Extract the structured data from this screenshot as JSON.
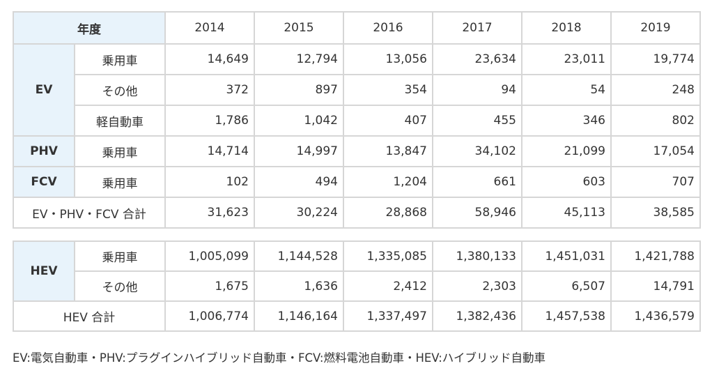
{
  "header": {
    "year_label": "年度",
    "years": [
      "2014",
      "2015",
      "2016",
      "2017",
      "2018",
      "2019"
    ]
  },
  "table1": {
    "ev": {
      "label": "EV",
      "rows": [
        {
          "sub": "乗用車",
          "values": [
            "14,649",
            "12,794",
            "13,056",
            "23,634",
            "23,011",
            "19,774"
          ]
        },
        {
          "sub": "その他",
          "values": [
            "372",
            "897",
            "354",
            "94",
            "54",
            "248"
          ]
        },
        {
          "sub": "軽自動車",
          "values": [
            "1,786",
            "1,042",
            "407",
            "455",
            "346",
            "802"
          ]
        }
      ]
    },
    "phv": {
      "label": "PHV",
      "sub": "乗用車",
      "values": [
        "14,714",
        "14,997",
        "13,847",
        "34,102",
        "21,099",
        "17,054"
      ]
    },
    "fcv": {
      "label": "FCV",
      "sub": "乗用車",
      "values": [
        "102",
        "494",
        "1,204",
        "661",
        "603",
        "707"
      ]
    },
    "total": {
      "label": "EV・PHV・FCV 合計",
      "values": [
        "31,623",
        "30,224",
        "28,868",
        "58,946",
        "45,113",
        "38,585"
      ]
    }
  },
  "table2": {
    "hev": {
      "label": "HEV",
      "rows": [
        {
          "sub": "乗用車",
          "values": [
            "1,005,099",
            "1,144,528",
            "1,335,085",
            "1,380,133",
            "1,451,031",
            "1,421,788"
          ]
        },
        {
          "sub": "その他",
          "values": [
            "1,675",
            "1,636",
            "2,412",
            "2,303",
            "6,507",
            "14,791"
          ]
        }
      ]
    },
    "total": {
      "label": "HEV 合計",
      "values": [
        "1,006,774",
        "1,146,164",
        "1,337,497",
        "1,382,436",
        "1,457,538",
        "1,436,579"
      ]
    }
  },
  "footnote": "EV:電気自動車・PHV:プラグインハイブリッド自動車・FCV:燃料電池自動車・HEV:ハイブリッド自動車"
}
